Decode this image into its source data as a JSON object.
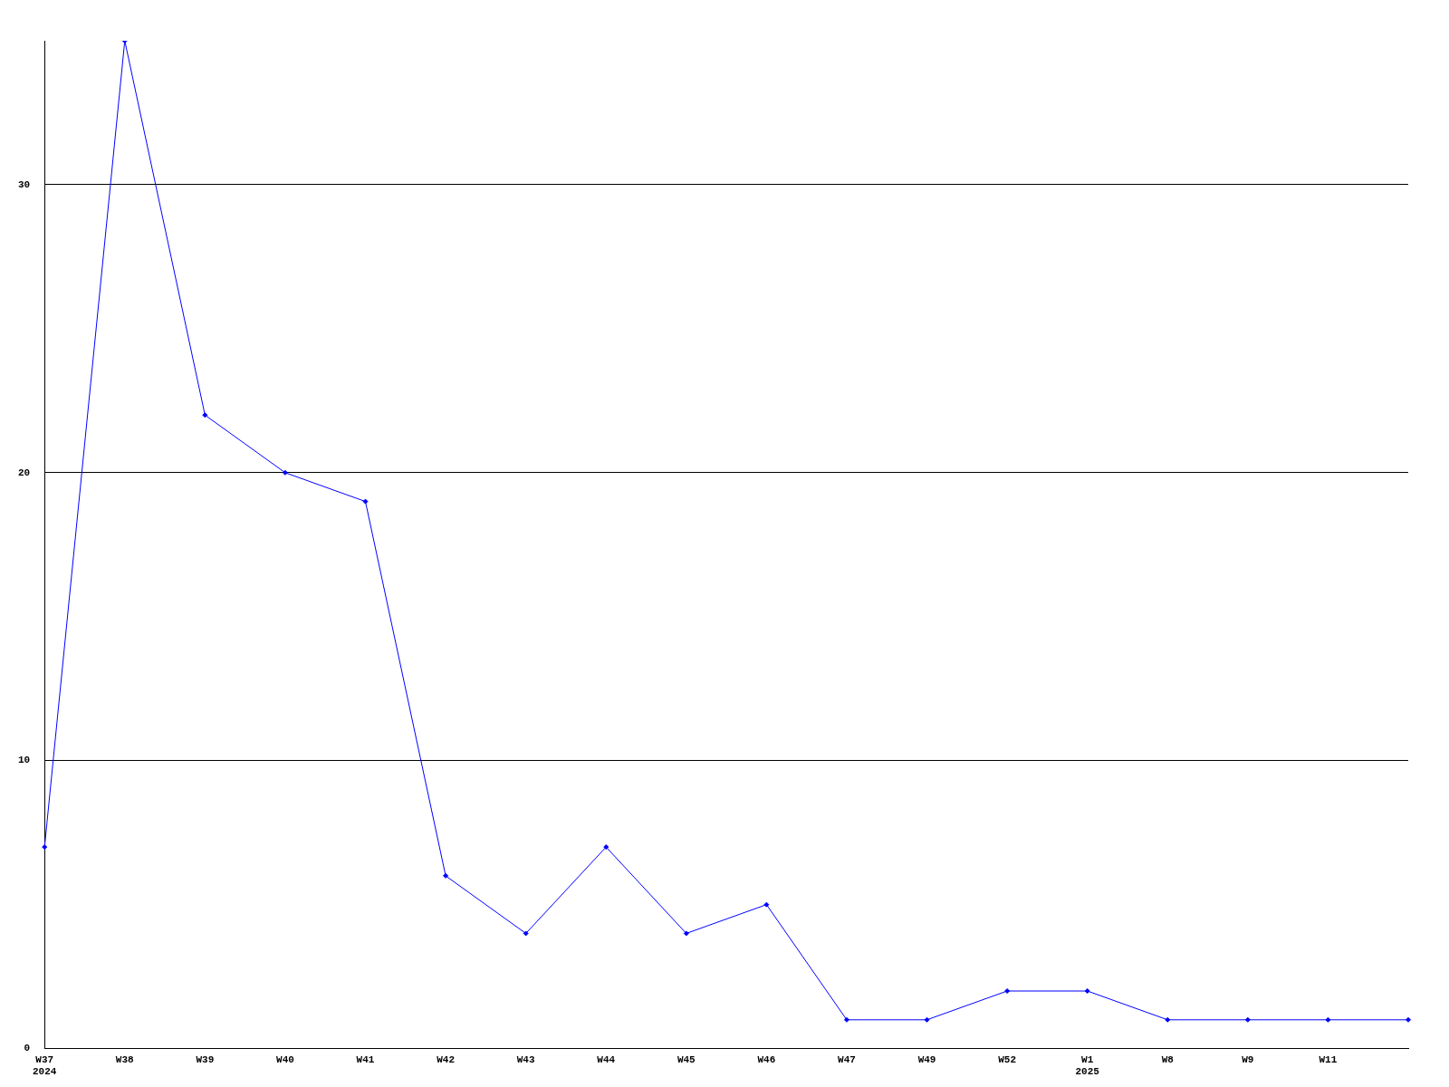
{
  "chart_data": {
    "type": "line",
    "categories": [
      "W37\n2024",
      "W38",
      "W39",
      "W40",
      "W41",
      "W42",
      "W43",
      "W44",
      "W45",
      "W46",
      "W47",
      "W49",
      "W52",
      "W1\n2025",
      "W8",
      "W9",
      "W11",
      null
    ],
    "series": [
      {
        "color": "#0000ff",
        "values": [
          7,
          35,
          22,
          20,
          19,
          6,
          4,
          7,
          4,
          5,
          1,
          1,
          2,
          2,
          1,
          1,
          1,
          1
        ]
      }
    ],
    "ylim": [
      0,
      35
    ],
    "yticks": [
      0,
      10,
      20,
      30
    ],
    "grid": "y",
    "legend": false,
    "marker": "diamond",
    "line_style": "solid"
  }
}
